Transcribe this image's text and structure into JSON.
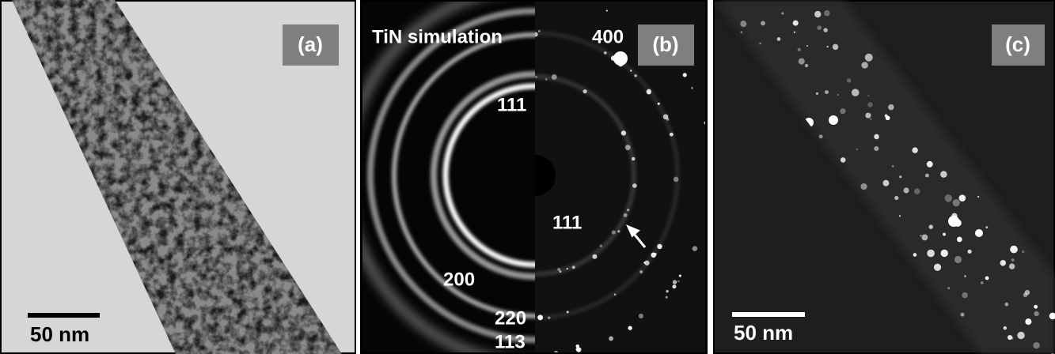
{
  "panels": [
    {
      "label": "(a)",
      "scale_bar": "50 nm"
    },
    {
      "label": "(b)",
      "title": "TiN simulation",
      "indices": [
        "400",
        "111",
        "111",
        "200",
        "220",
        "113"
      ]
    },
    {
      "label": "(c)",
      "scale_bar": "50 nm"
    }
  ]
}
